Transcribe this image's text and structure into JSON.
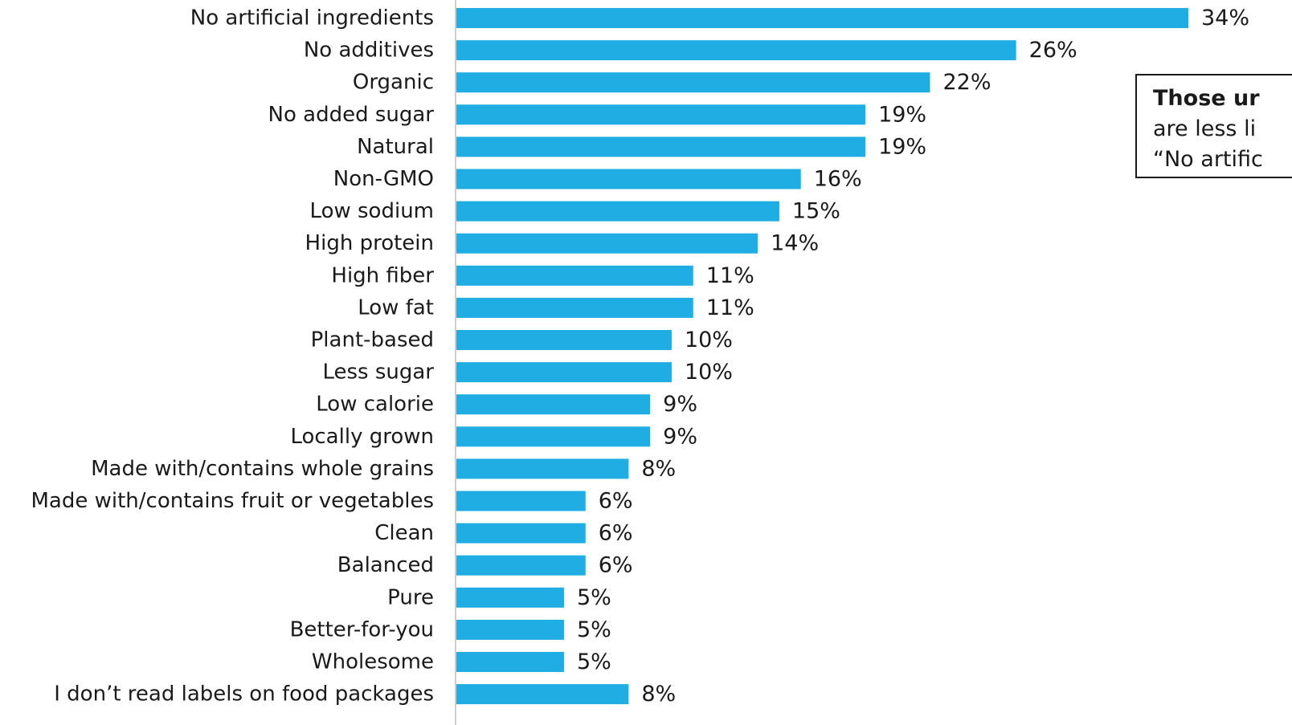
{
  "colors": {
    "bar": "#1fade4",
    "axis": "#bfbfbf",
    "text": "#1a1a1a"
  },
  "callout": {
    "line1": "Those ur",
    "line2": "are less li",
    "line3": "“No artific"
  },
  "chart_data": {
    "type": "bar",
    "orientation": "horizontal",
    "title": "",
    "xlabel": "",
    "ylabel": "",
    "xlim": [
      0,
      34
    ],
    "grid": false,
    "categories": [
      "No artificial ingredients",
      "No additives",
      "Organic",
      "No added sugar",
      "Natural",
      "Non-GMO",
      "Low sodium",
      "High protein",
      "High fiber",
      "Low fat",
      "Plant-based",
      "Less sugar",
      "Low calorie",
      "Locally grown",
      "Made with/contains whole grains",
      "Made with/contains fruit or vegetables",
      "Clean",
      "Balanced",
      "Pure",
      "Better-for-you",
      "Wholesome",
      "I don’t read labels on food packages"
    ],
    "values": [
      34,
      26,
      22,
      19,
      19,
      16,
      15,
      14,
      11,
      11,
      10,
      10,
      9,
      9,
      8,
      6,
      6,
      6,
      5,
      5,
      5,
      8
    ],
    "value_labels": [
      "34%",
      "26%",
      "22%",
      "19%",
      "19%",
      "16%",
      "15%",
      "14%",
      "11%",
      "11%",
      "10%",
      "10%",
      "9%",
      "9%",
      "8%",
      "6%",
      "6%",
      "6%",
      "5%",
      "5%",
      "5%",
      "8%"
    ]
  }
}
